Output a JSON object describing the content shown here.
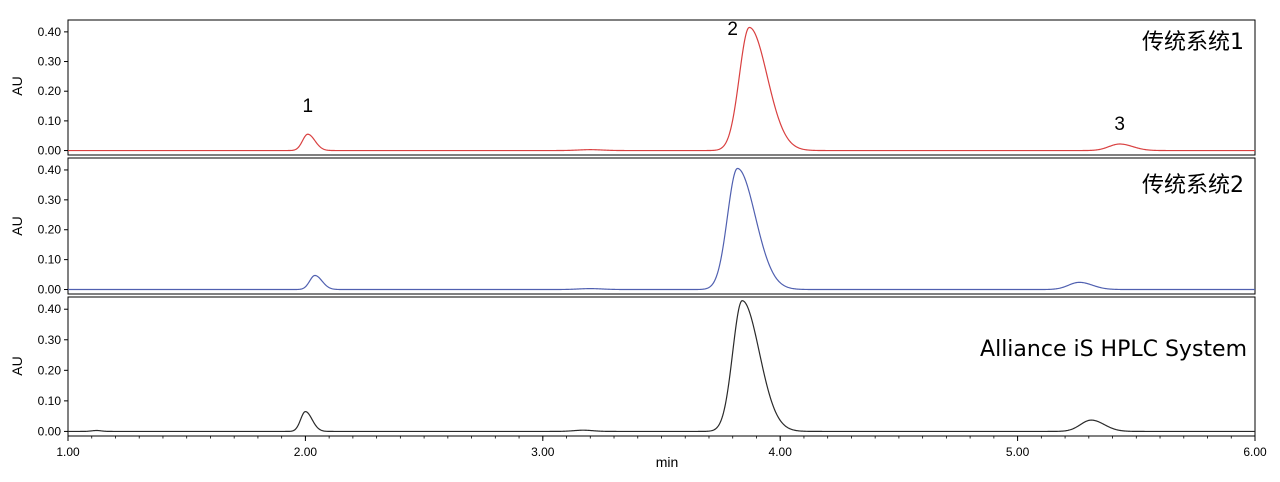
{
  "chart_data": {
    "type": "line",
    "xlabel": "min",
    "xlim": [
      1.0,
      6.0
    ],
    "x_ticks": [
      "1.00",
      "2.00",
      "3.00",
      "4.00",
      "5.00",
      "6.00"
    ],
    "panels": [
      {
        "title": "传统系统1",
        "ylabel": "AU",
        "ylim": [
          -0.015,
          0.44
        ],
        "y_ticks": [
          "0.00",
          "0.10",
          "0.20",
          "0.30",
          "0.40"
        ],
        "color": "#d94040",
        "baseline": 0.0,
        "peaks": [
          {
            "rt": 2.01,
            "height": 0.055,
            "width_left": 0.022,
            "width_right": 0.03
          },
          {
            "rt": 3.2,
            "height": 0.003,
            "width_left": 0.05,
            "width_right": 0.05
          },
          {
            "rt": 3.87,
            "height": 0.415,
            "width_left": 0.042,
            "width_right": 0.075
          },
          {
            "rt": 5.43,
            "height": 0.022,
            "width_left": 0.045,
            "width_right": 0.055
          }
        ],
        "peak_labels": [
          {
            "text": "1",
            "x": 2.01,
            "y": 0.13
          },
          {
            "text": "2",
            "x": 3.8,
            "y": 0.39
          },
          {
            "text": "3",
            "x": 5.43,
            "y": 0.07
          }
        ]
      },
      {
        "title": "传统系统2",
        "ylabel": "AU",
        "ylim": [
          -0.015,
          0.44
        ],
        "y_ticks": [
          "0.00",
          "0.10",
          "0.20",
          "0.30",
          "0.40"
        ],
        "color": "#5060b0",
        "baseline": 0.0,
        "peaks": [
          {
            "rt": 2.04,
            "height": 0.047,
            "width_left": 0.022,
            "width_right": 0.03
          },
          {
            "rt": 3.2,
            "height": 0.003,
            "width_left": 0.05,
            "width_right": 0.05
          },
          {
            "rt": 3.82,
            "height": 0.405,
            "width_left": 0.042,
            "width_right": 0.075
          },
          {
            "rt": 5.26,
            "height": 0.024,
            "width_left": 0.045,
            "width_right": 0.055
          }
        ],
        "peak_labels": []
      },
      {
        "title": "Alliance iS HPLC System",
        "ylabel": "AU",
        "ylim": [
          -0.015,
          0.44
        ],
        "y_ticks": [
          "0.00",
          "0.10",
          "0.20",
          "0.30",
          "0.40"
        ],
        "color": "#2a2a2a",
        "baseline": 0.0,
        "peaks": [
          {
            "rt": 1.12,
            "height": 0.003,
            "width_left": 0.02,
            "width_right": 0.02
          },
          {
            "rt": 2.0,
            "height": 0.065,
            "width_left": 0.02,
            "width_right": 0.028
          },
          {
            "rt": 3.17,
            "height": 0.004,
            "width_left": 0.04,
            "width_right": 0.04
          },
          {
            "rt": 3.84,
            "height": 0.428,
            "width_left": 0.04,
            "width_right": 0.072
          },
          {
            "rt": 5.31,
            "height": 0.037,
            "width_left": 0.045,
            "width_right": 0.055
          }
        ],
        "peak_labels": []
      }
    ]
  }
}
